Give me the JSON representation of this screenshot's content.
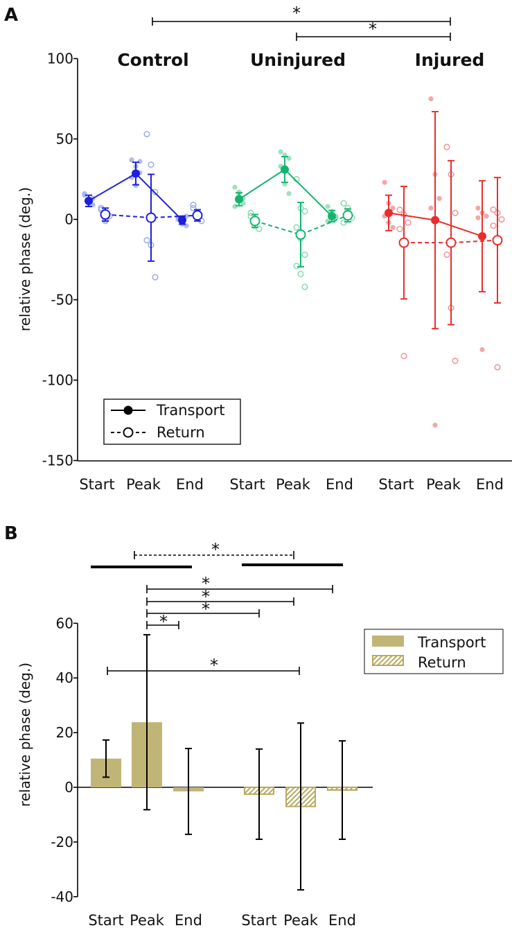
{
  "chart_data": [
    {
      "panel": "A",
      "type": "scatter",
      "ylabel": "relative phase (deg.)",
      "ylim": [
        -150,
        100
      ],
      "yticks": [
        100,
        50,
        0,
        -50,
        -100,
        -150
      ],
      "legend": {
        "position": "bottom-left",
        "items": [
          "Transport",
          "Return"
        ]
      },
      "groups": [
        {
          "name": "Control",
          "color": "#1e1edc",
          "light": "#9fb0ee",
          "categories": [
            "Start",
            "Peak",
            "End"
          ],
          "transport": {
            "mean": [
              11.5,
              28.5,
              -0.5
            ],
            "err": [
              3.5,
              7.0,
              2.5
            ],
            "points": [
              [
                15,
                12,
                9,
                16,
                10,
                13
              ],
              [
                37,
                33,
                29,
                26,
                21,
                36
              ],
              [
                1,
                -2,
                -4,
                0,
                -3,
                2
              ]
            ]
          },
          "return": {
            "mean": [
              3,
              1,
              2.5
            ],
            "err": [
              4,
              27,
              3.5
            ],
            "points": [
              [
                6,
                -1,
                2,
                7,
                0
              ],
              [
                53,
                34,
                17,
                -13,
                -16,
                -36
              ],
              [
                7,
                1,
                -1,
                9,
                3
              ]
            ]
          }
        },
        {
          "name": "Uninjured",
          "color": "#14b46e",
          "light": "#8ddcb4",
          "categories": [
            "Start",
            "Peak",
            "End"
          ],
          "transport": {
            "mean": [
              12.5,
              31,
              2
            ],
            "err": [
              4,
              8,
              3.5
            ],
            "points": [
              [
                20,
                15,
                10,
                8,
                17,
                13
              ],
              [
                42,
                40,
                38,
                33,
                22,
                16
              ],
              [
                8,
                4,
                1,
                -1,
                5,
                2
              ]
            ]
          },
          "return": {
            "mean": [
              -1,
              -9.5,
              2.5
            ],
            "err": [
              4,
              20,
              4
            ],
            "points": [
              [
                4,
                -2,
                -6,
                2,
                -4
              ],
              [
                25,
                7,
                5,
                -5,
                -12,
                -22,
                -29,
                -34,
                -42
              ],
              [
                10,
                5,
                1,
                -2,
                7
              ]
            ]
          }
        },
        {
          "name": "Injured",
          "color": "#e82d2d",
          "light": "#f09898",
          "categories": [
            "Start",
            "Peak",
            "End"
          ],
          "transport": {
            "mean": [
              4,
              -0.5,
              -10.5
            ],
            "err": [
              11,
              67.5,
              34.5
            ],
            "points": [
              [
                23,
                10,
                7,
                2,
                -2,
                -5
              ],
              [
                75,
                28,
                13,
                7,
                -128
              ],
              [
                7,
                4,
                2,
                1,
                -81
              ]
            ]
          },
          "return": {
            "mean": [
              -14.5,
              -14.5,
              -13
            ],
            "err": [
              35,
              51,
              39
            ],
            "points": [
              [
                6,
                3,
                -2,
                -6,
                -85
              ],
              [
                45,
                28,
                4,
                -22,
                -55,
                -88
              ],
              [
                6,
                4,
                0,
                -4,
                -92
              ]
            ]
          }
        }
      ],
      "significance": [
        {
          "label": "*",
          "from": "Control",
          "to": "Injured"
        },
        {
          "label": "*",
          "from": "Uninjured",
          "to": "Injured"
        }
      ]
    },
    {
      "panel": "B",
      "type": "bar",
      "ylabel": "relative phase (deg.)",
      "ylim": [
        -40,
        60
      ],
      "yticks": [
        60,
        40,
        20,
        0,
        -20,
        -40
      ],
      "color": "#c0b577",
      "legend": {
        "position": "top-right",
        "items": [
          "Transport",
          "Return"
        ]
      },
      "series": [
        {
          "name": "Transport",
          "categories": [
            "Start",
            "Peak",
            "End"
          ],
          "values": [
            10.5,
            23.8,
            -1.5
          ],
          "err": [
            6.8,
            32,
            15.7
          ]
        },
        {
          "name": "Return",
          "categories": [
            "Start",
            "Peak",
            "End"
          ],
          "values": [
            -2.5,
            -7,
            -1
          ],
          "err": [
            16.5,
            30.5,
            18
          ]
        }
      ],
      "significance": [
        {
          "label": "*",
          "from": "Transport Start",
          "to": "Return Peak"
        },
        {
          "label": "*",
          "from": "Transport Peak",
          "to": "Transport End"
        },
        {
          "label": "*",
          "from": "Transport Peak",
          "to": "Return Start"
        },
        {
          "label": "*",
          "from": "Transport Peak",
          "to": "Return Peak"
        },
        {
          "label": "*",
          "from": "Transport Peak",
          "to": "Return End"
        },
        {
          "label": "*",
          "from": "Transport",
          "to": "Return",
          "style": "dashed"
        }
      ]
    }
  ]
}
